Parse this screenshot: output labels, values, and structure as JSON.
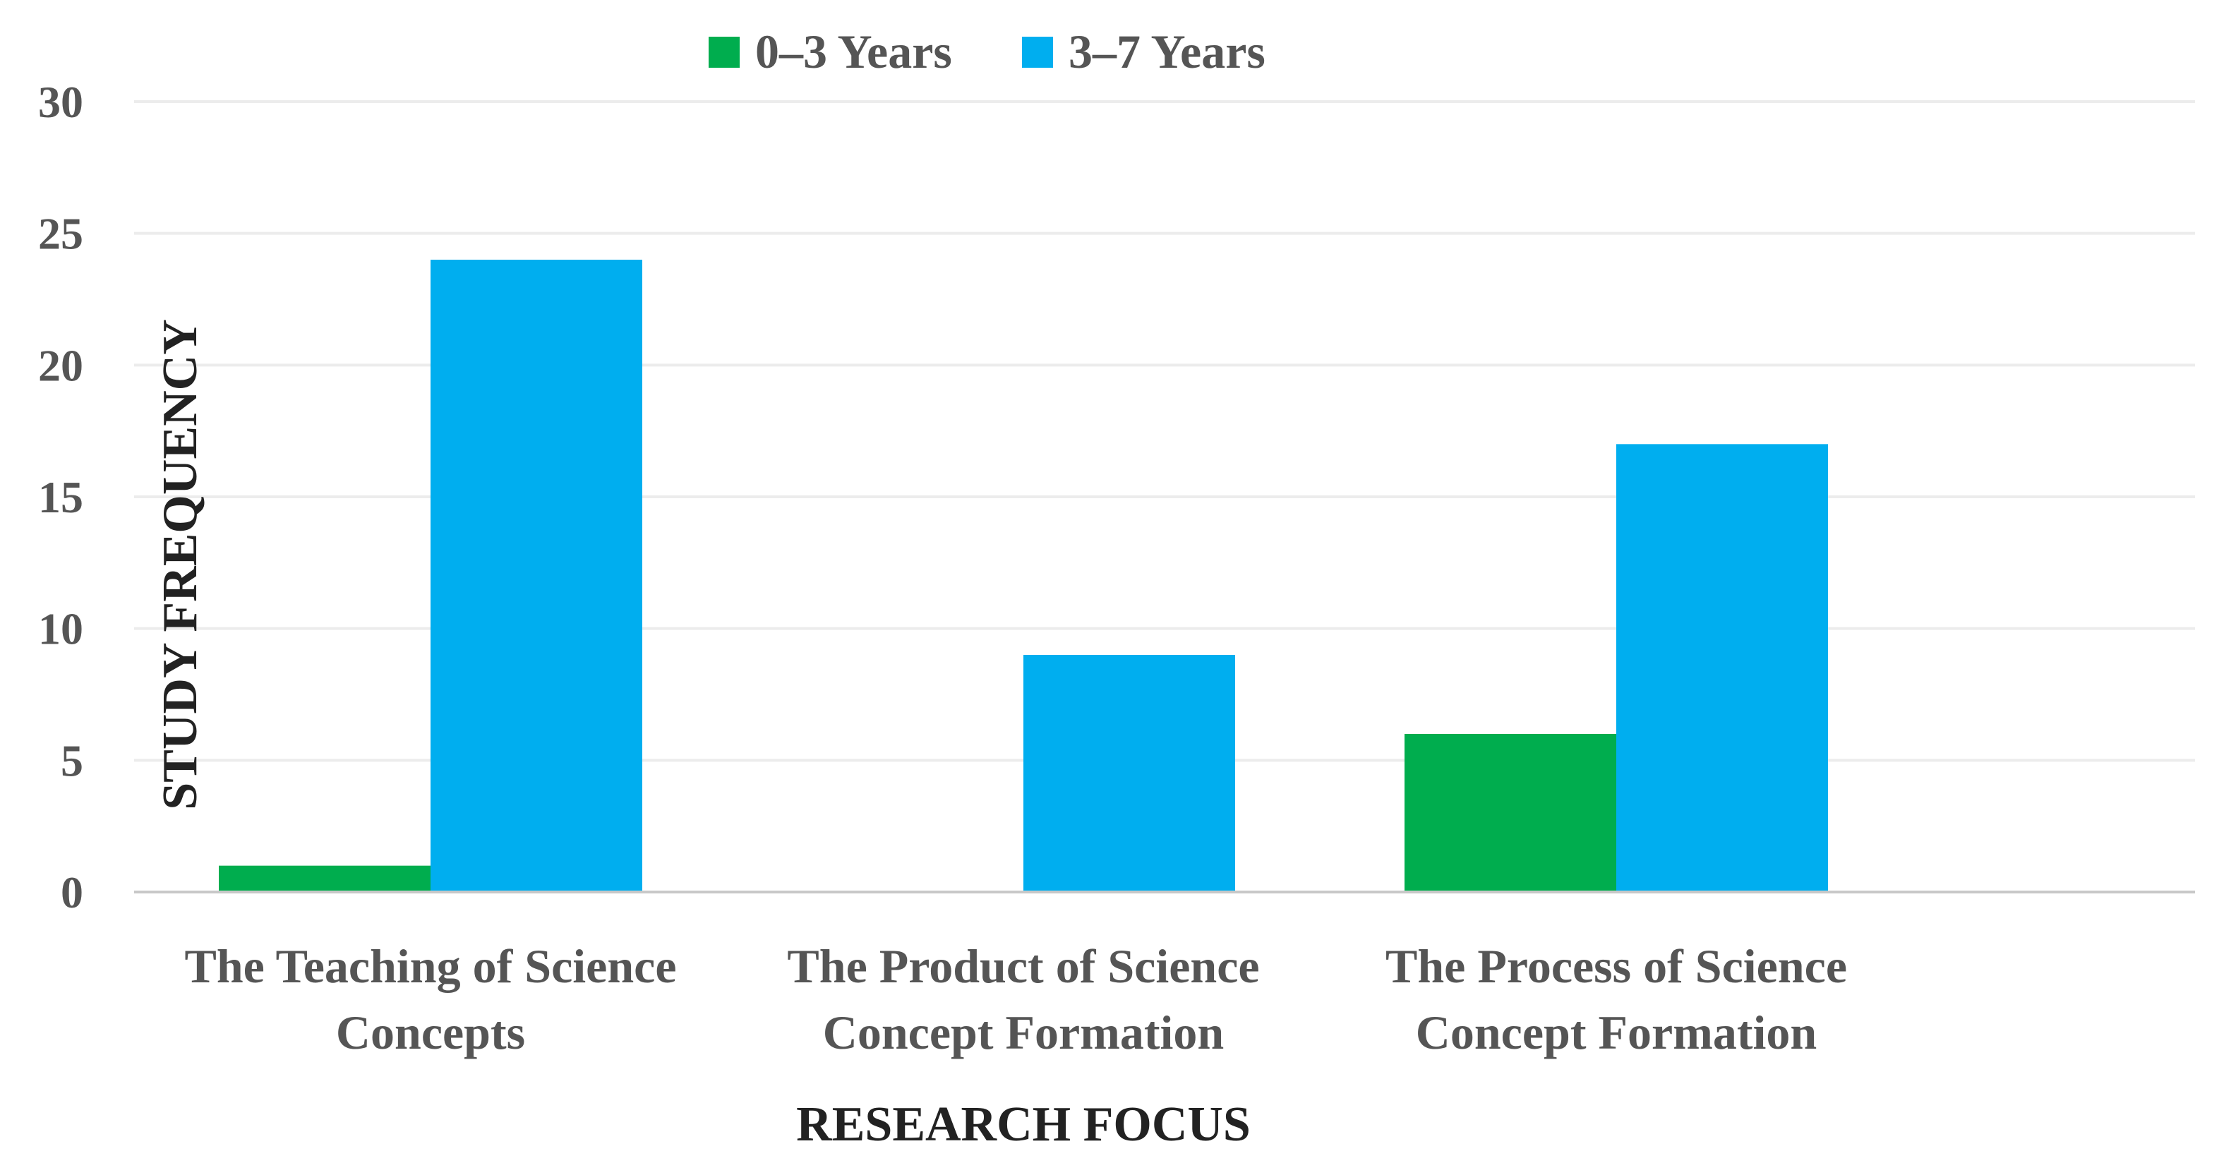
{
  "chart_data": {
    "type": "bar",
    "categories": [
      [
        "The Teaching of Science",
        "Concepts"
      ],
      [
        "The Product of Science",
        "Concept Formation"
      ],
      [
        "The Process of Science",
        "Concept Formation"
      ]
    ],
    "series": [
      {
        "name": "0–3 Years",
        "color": "#00ad4e",
        "values": [
          1,
          0,
          6
        ]
      },
      {
        "name": "3–7 Years",
        "color": "#00aeef",
        "values": [
          24,
          9,
          17
        ]
      }
    ],
    "xlabel": "RESEARCH FOCUS",
    "ylabel": "STUDY FREQUENCY",
    "ylim": [
      0,
      30
    ],
    "yticks": [
      0,
      5,
      10,
      15,
      20,
      25,
      30
    ],
    "grid": true,
    "legend_position": "top-center"
  }
}
